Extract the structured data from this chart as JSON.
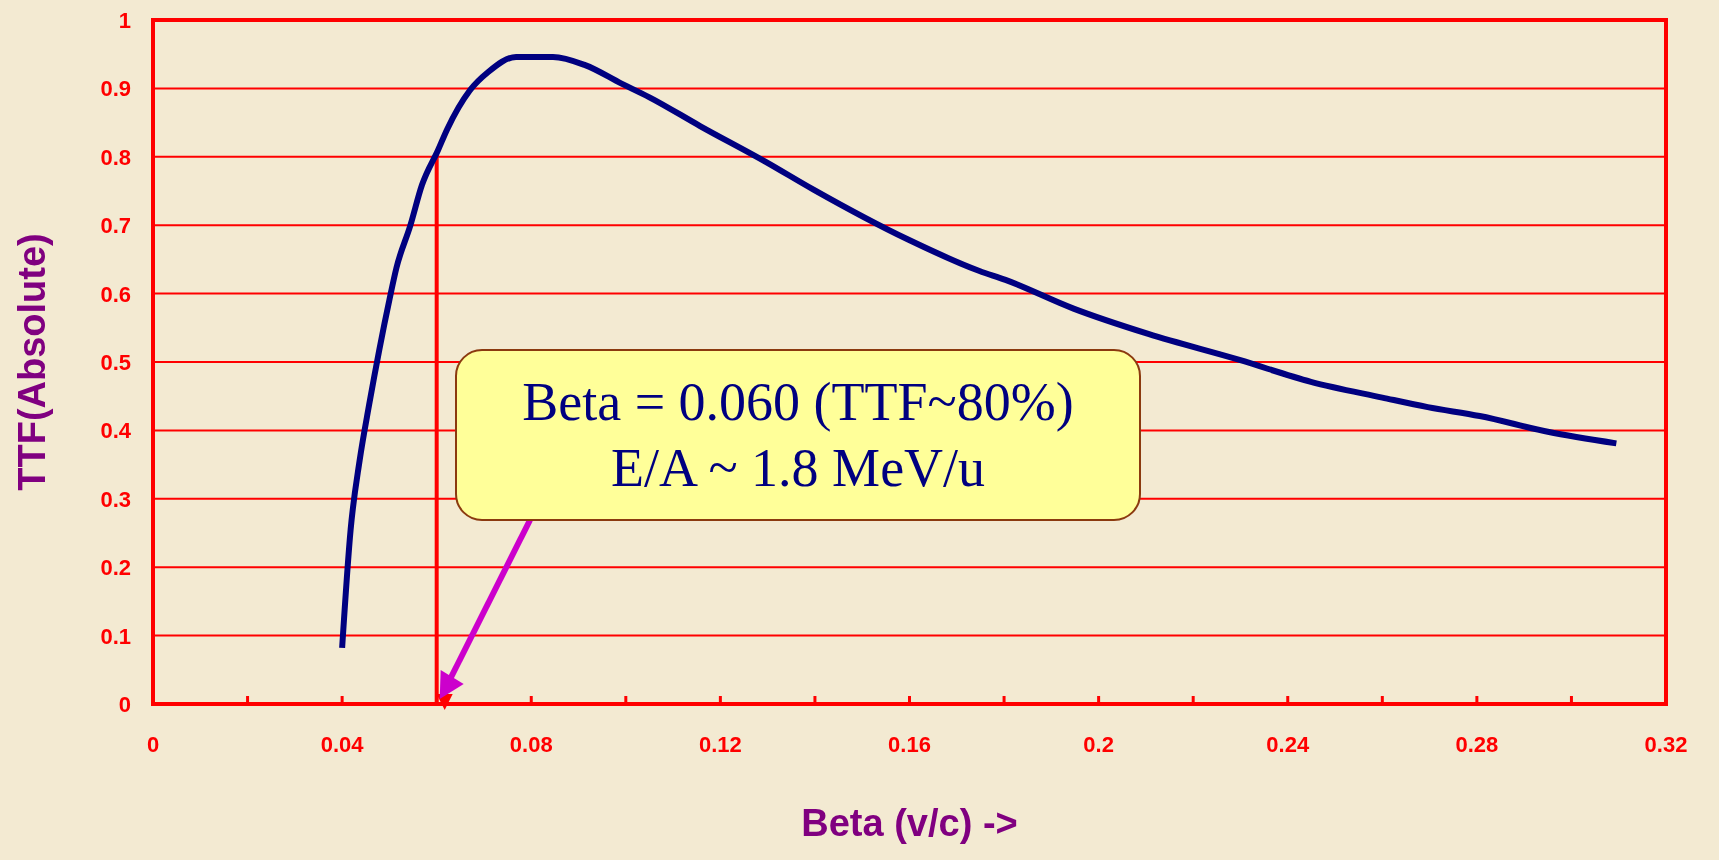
{
  "chart_data": {
    "type": "line",
    "xlabel": "Beta (v/c) ->",
    "ylabel": "TTF(Absolute)",
    "xlim": [
      0,
      0.32
    ],
    "ylim": [
      0,
      1
    ],
    "xticks": [
      0,
      {
        "value": 0.02,
        "label": null
      },
      0.04,
      {
        "value": 0.06,
        "label": null
      },
      0.08,
      {
        "value": 0.1,
        "label": null
      },
      0.12,
      {
        "value": 0.14,
        "label": null
      },
      0.16,
      {
        "value": 0.18,
        "label": null
      },
      0.2,
      {
        "value": 0.22,
        "label": null
      },
      0.24,
      {
        "value": 0.26,
        "label": null
      },
      0.28,
      {
        "value": 0.3,
        "label": null
      },
      0.32
    ],
    "yticks": [
      0,
      0.1,
      0.2,
      0.3,
      0.4,
      0.5,
      0.6,
      0.7,
      0.8,
      0.9,
      1
    ],
    "grid": "y",
    "marker": "none",
    "line_style": "solid",
    "series": [
      {
        "color": "#000080",
        "x": [
          0.04,
          0.0418,
          0.0437,
          0.0457,
          0.05,
          0.0515,
          0.0544,
          0.0569,
          0.0603,
          0.0622,
          0.067,
          0.0709,
          0.0768,
          0.0846,
          0.0914,
          0.0991,
          0.105,
          0.1157,
          0.1295,
          0.1397,
          0.1597,
          0.1748,
          0.1803,
          0.1947,
          0.2105,
          0.2298,
          0.2449,
          0.26,
          0.2696,
          0.2806,
          0.295,
          0.3095
        ],
        "values": [
          0.082,
          0.255,
          0.356,
          0.437,
          0.591,
          0.638,
          0.699,
          0.759,
          0.81,
          0.84,
          0.897,
          0.924,
          0.946,
          0.946,
          0.934,
          0.907,
          0.887,
          0.845,
          0.793,
          0.752,
          0.679,
          0.633,
          0.62,
          0.578,
          0.541,
          0.503,
          0.471,
          0.448,
          0.434,
          0.421,
          0.398,
          0.381
        ]
      }
    ],
    "ref_lines": [
      {
        "axis": "x",
        "value": 0.06,
        "color": "#ff0000"
      }
    ],
    "annotations": [
      "Beta = 0.060 (TTF~80%)\nE/A ~ 1.8 MeV/u"
    ]
  }
}
